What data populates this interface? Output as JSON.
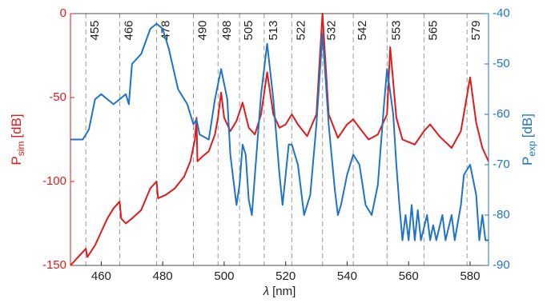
{
  "chart_data": {
    "type": "line",
    "xlabel": {
      "main": "λ",
      "unit": "[nm]"
    },
    "ylabel": {
      "main": "P",
      "sub": "sim",
      "unit": "[dB]"
    },
    "y2label": {
      "main": "P",
      "sub": "exp",
      "unit": "[dB]"
    },
    "xlim": [
      450,
      586
    ],
    "xticks": [
      460,
      480,
      500,
      520,
      540,
      560,
      580
    ],
    "ylim": [
      -150,
      0
    ],
    "yticks": [
      -150,
      -100,
      -50,
      0
    ],
    "y2lim": [
      -90,
      -40
    ],
    "y2ticks": [
      -90,
      -80,
      -70,
      -60,
      -50,
      -40
    ],
    "vlines": [
      455,
      466,
      478,
      490,
      498,
      505,
      513,
      522,
      532,
      542,
      553,
      565,
      579
    ],
    "series": [
      {
        "name": "sim",
        "color": "#e31a1c",
        "axis": "y",
        "x": [
          450,
          452,
          454,
          455,
          455.5,
          458,
          460,
          462,
          464,
          466,
          466.5,
          468,
          470,
          473,
          476,
          478,
          478.5,
          481,
          484,
          487,
          489,
          490.5,
          491,
          491.3,
          493,
          495,
          497,
          498,
          499,
          500,
          502,
          504,
          506,
          508,
          510,
          512,
          514,
          516,
          518,
          520,
          522,
          524,
          527,
          530,
          532,
          534,
          537,
          540,
          542,
          544,
          547,
          550,
          553,
          554,
          556,
          558,
          562,
          565,
          567,
          570,
          574,
          577,
          580,
          582,
          584,
          586
        ],
        "values": [
          -150,
          -146,
          -142,
          -140,
          -145,
          -138,
          -130,
          -122,
          -116,
          -112,
          -122,
          -125,
          -122,
          -117,
          -104,
          -100,
          -110,
          -108,
          -104,
          -97,
          -88,
          -75,
          -62,
          -88,
          -85,
          -82,
          -72,
          -62,
          -47,
          -62,
          -70,
          -64,
          -53,
          -68,
          -72,
          -60,
          -35,
          -60,
          -68,
          -66,
          -60,
          -66,
          -73,
          -60,
          0,
          -60,
          -74,
          -66,
          -63,
          -68,
          -75,
          -72,
          -60,
          -20,
          -62,
          -75,
          -78,
          -70,
          -66,
          -73,
          -80,
          -70,
          -38,
          -65,
          -80,
          -88
        ]
      },
      {
        "name": "exp",
        "color": "#1f74c6",
        "axis": "y2",
        "x": [
          450,
          454,
          456,
          458,
          460,
          462,
          464,
          466,
          468,
          469,
          470,
          473,
          476,
          478,
          480,
          482,
          485,
          488,
          490,
          491,
          492,
          495,
          497,
          499,
          501,
          502,
          503,
          504,
          505,
          506,
          507,
          508,
          509,
          510,
          512,
          514,
          516,
          518,
          519,
          520,
          521,
          522,
          524,
          526,
          528,
          530,
          532,
          534,
          536,
          537,
          538,
          540,
          542,
          544,
          546,
          548,
          550,
          552,
          553,
          555,
          556,
          557,
          558,
          559,
          560,
          561,
          562,
          563,
          564,
          566,
          567,
          568,
          569,
          571,
          572,
          574,
          575,
          577,
          578,
          580,
          582,
          583,
          584,
          585,
          586
        ],
        "values": [
          -65,
          -65,
          -63,
          -57,
          -56,
          -57,
          -58,
          -57,
          -56,
          -58,
          -50,
          -48,
          -43,
          -42,
          -43,
          -47,
          -55,
          -58,
          -62,
          -61,
          -64,
          -65,
          -57,
          -51,
          -57,
          -68,
          -73,
          -78,
          -74,
          -66,
          -68,
          -77,
          -80,
          -72,
          -56,
          -46,
          -57,
          -72,
          -78,
          -72,
          -66,
          -66,
          -70,
          -80,
          -76,
          -62,
          -44,
          -62,
          -75,
          -80,
          -78,
          -72,
          -68,
          -70,
          -78,
          -80,
          -74,
          -58,
          -51,
          -60,
          -70,
          -78,
          -85,
          -80,
          -85,
          -78,
          -85,
          -79,
          -85,
          -80,
          -85,
          -82,
          -85,
          -80,
          -85,
          -80,
          -85,
          -78,
          -72,
          -70,
          -76,
          -85,
          -80,
          -85,
          -85
        ]
      }
    ]
  }
}
